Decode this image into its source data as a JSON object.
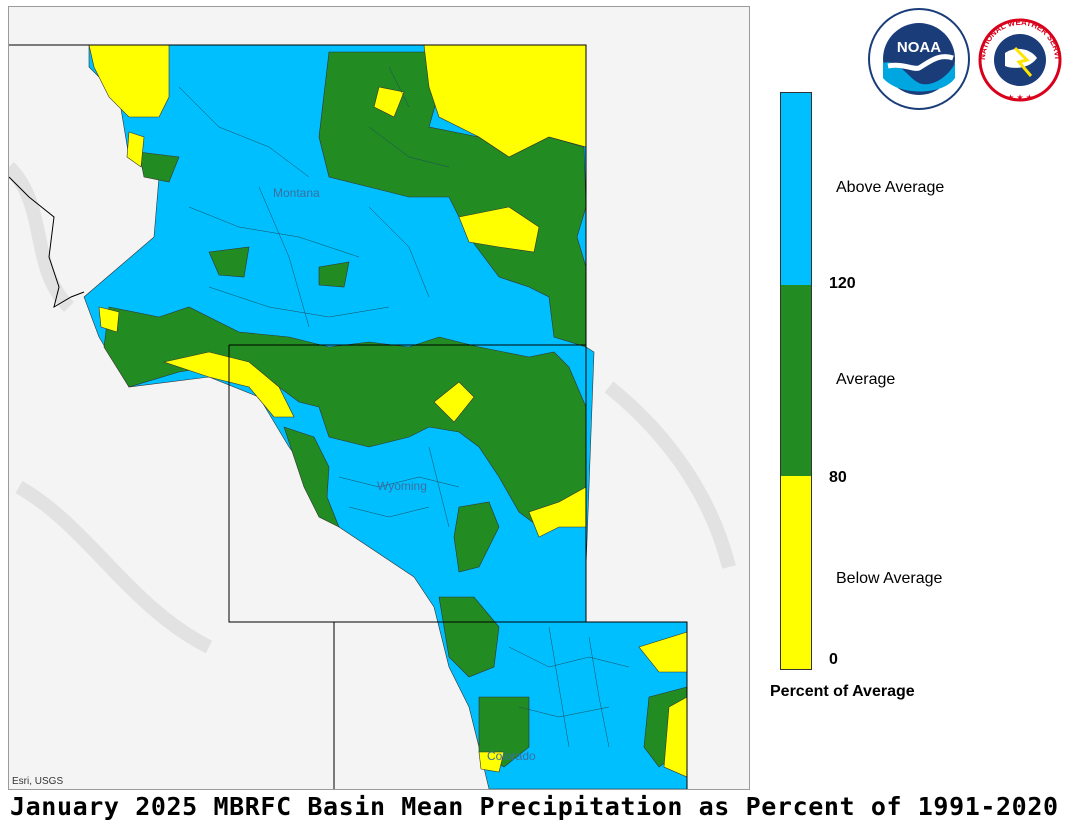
{
  "map": {
    "state_labels": [
      "Montana",
      "Wyoming",
      "Colorado"
    ],
    "attribution": "Esri, USGS"
  },
  "legend": {
    "categories": [
      {
        "label": "Above Average",
        "color": "#00bfff"
      },
      {
        "label": "Average",
        "color": "#228b22"
      },
      {
        "label": "Below Average",
        "color": "#ffff00"
      }
    ],
    "breaks": [
      "120",
      "80",
      "0"
    ],
    "title": "Percent of Average"
  },
  "logos": {
    "noaa_text": "NOAA",
    "nws_text": "NATIONAL WEATHER SERVICE"
  },
  "title": "January 2025 MBRFC Basin Mean Precipitation as Percent of 1991-2020"
}
